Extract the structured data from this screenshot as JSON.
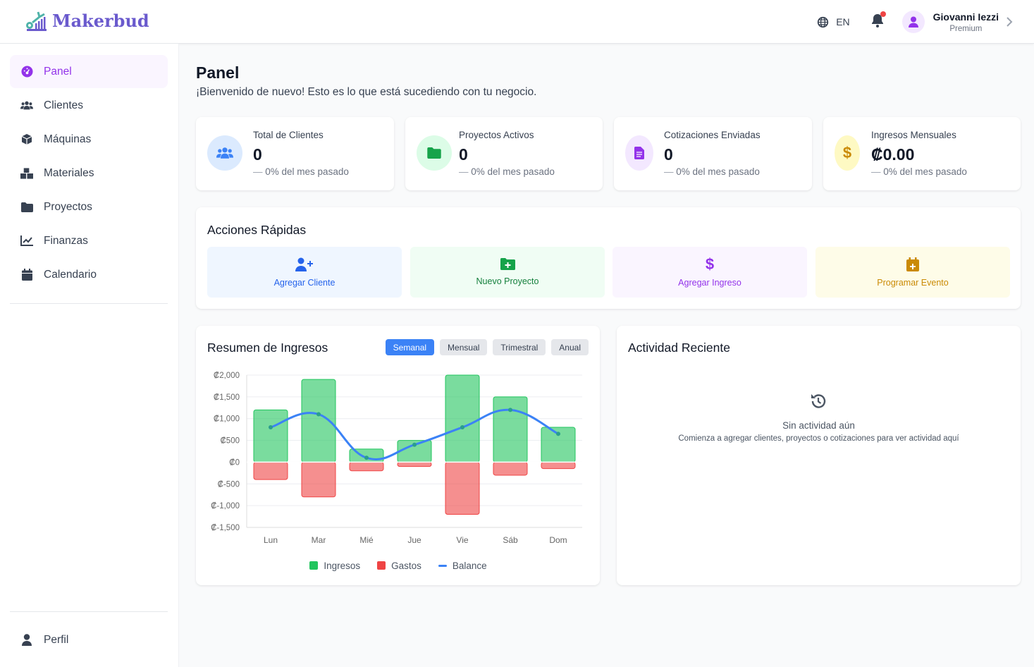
{
  "header": {
    "brand": "Makerbud",
    "language": "EN",
    "user_name": "Giovanni Iezzi",
    "user_plan": "Premium"
  },
  "sidebar": {
    "items": [
      {
        "label": "Panel",
        "icon": "gauge-icon"
      },
      {
        "label": "Clientes",
        "icon": "users-icon"
      },
      {
        "label": "Máquinas",
        "icon": "cube-icon"
      },
      {
        "label": "Materiales",
        "icon": "boxes-icon"
      },
      {
        "label": "Proyectos",
        "icon": "folder-icon"
      },
      {
        "label": "Finanzas",
        "icon": "chart-line-icon"
      },
      {
        "label": "Calendario",
        "icon": "calendar-icon"
      }
    ],
    "profile": "Perfil",
    "active": "Panel"
  },
  "page": {
    "title": "Panel",
    "subtitle": "¡Bienvenido de nuevo! Esto es lo que está sucediendo con tu negocio."
  },
  "stats": [
    {
      "label": "Total de Clientes",
      "value": "0",
      "change": "0% del mes pasado",
      "color": "#3b82f6"
    },
    {
      "label": "Proyectos Activos",
      "value": "0",
      "change": "0% del mes pasado",
      "color": "#16a34a"
    },
    {
      "label": "Cotizaciones Enviadas",
      "value": "0",
      "change": "0% del mes pasado",
      "color": "#9333ea"
    },
    {
      "label": "Ingresos Mensuales",
      "value": "₡0.00",
      "change": "0% del mes pasado",
      "color": "#ca8a04"
    }
  ],
  "quick_actions": {
    "title": "Acciones Rápidas",
    "items": [
      {
        "label": "Agregar Cliente"
      },
      {
        "label": "Nuevo Proyecto"
      },
      {
        "label": "Agregar Ingreso"
      },
      {
        "label": "Programar Evento"
      }
    ]
  },
  "revenue": {
    "title": "Resumen de Ingresos",
    "tabs": [
      "Semanal",
      "Mensual",
      "Trimestral",
      "Anual"
    ],
    "active_tab": "Semanal"
  },
  "chart_data": {
    "type": "bar",
    "categories": [
      "Lun",
      "Mar",
      "Mié",
      "Jue",
      "Vie",
      "Sáb",
      "Dom"
    ],
    "series": [
      {
        "name": "Ingresos",
        "type": "bar",
        "color": "#22c55e",
        "values": [
          1200,
          1900,
          300,
          500,
          2000,
          1500,
          800
        ]
      },
      {
        "name": "Gastos",
        "type": "bar",
        "color": "#ef4444",
        "values": [
          -400,
          -800,
          -200,
          -100,
          -1200,
          -300,
          -150
        ]
      },
      {
        "name": "Balance",
        "type": "line",
        "color": "#3b82f6",
        "values": [
          800,
          1100,
          100,
          400,
          800,
          1200,
          650
        ]
      }
    ],
    "ylim": [
      -1500,
      2000
    ],
    "yticks": [
      "₡2,000",
      "₡1,500",
      "₡1,000",
      "₡500",
      "₡0",
      "₡-500",
      "₡-1,000",
      "₡-1,500"
    ],
    "grid": true,
    "legend": "bottom"
  },
  "activity": {
    "title": "Actividad Reciente",
    "empty_title": "Sin actividad aún",
    "empty_text": "Comienza a agregar clientes, proyectos o cotizaciones para ver actividad aquí"
  }
}
